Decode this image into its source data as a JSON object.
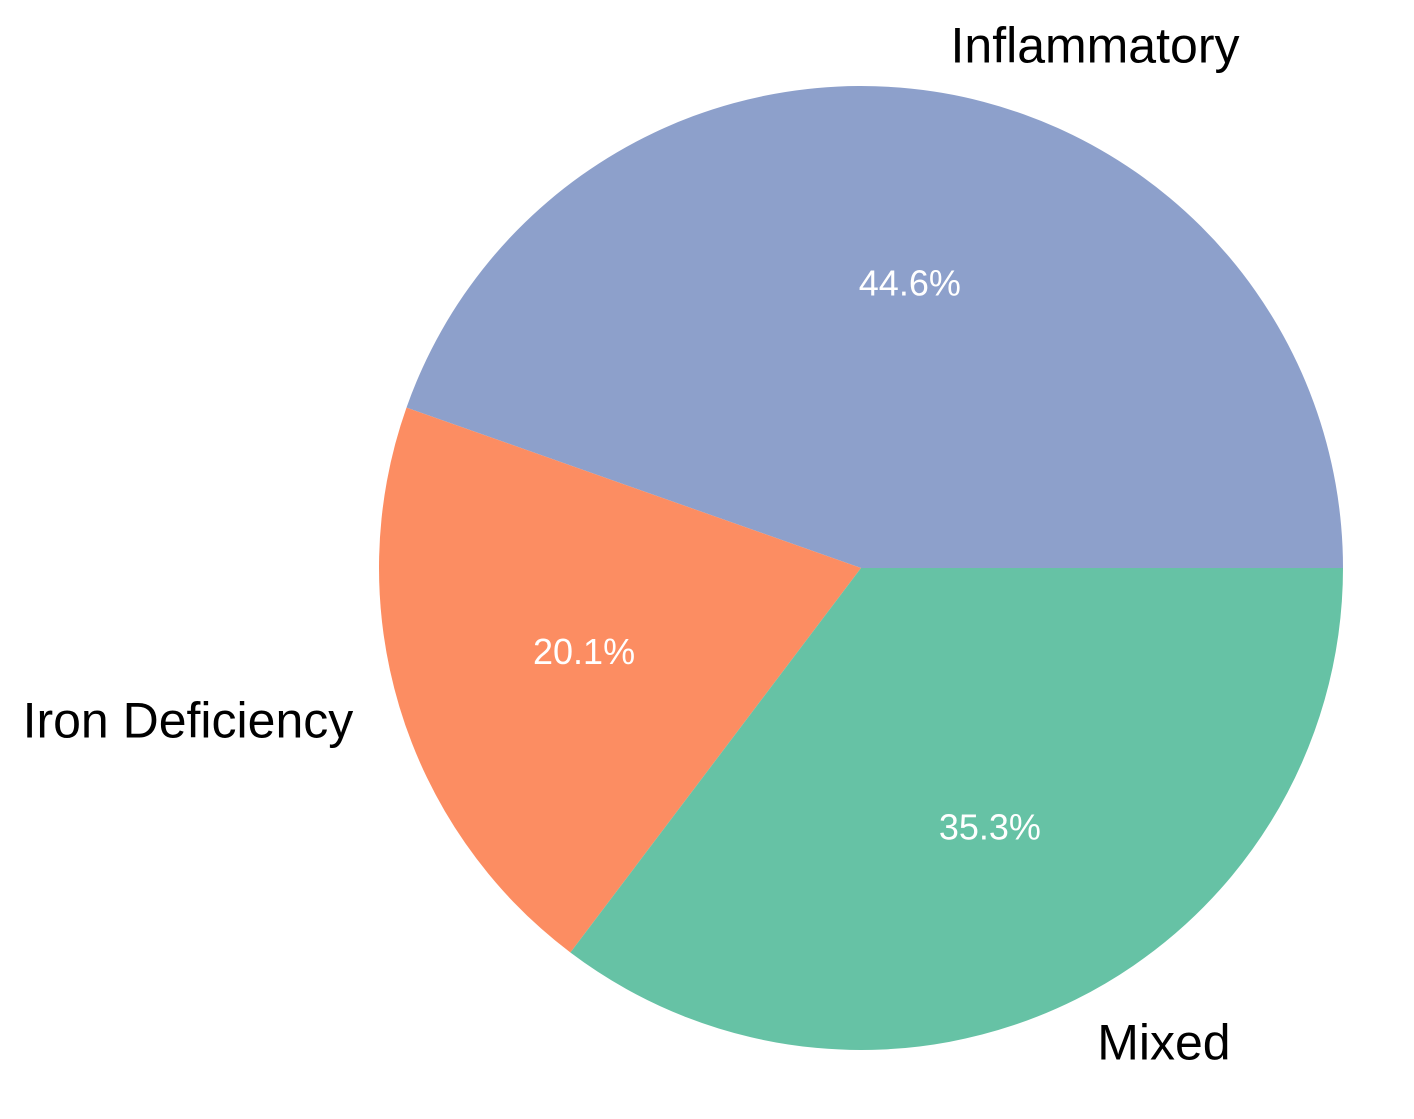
{
  "chart_data": {
    "type": "pie",
    "slices": [
      {
        "label": "Inflammatory",
        "value": 44.6,
        "pct_label": "44.6%",
        "color": "#8da0cb"
      },
      {
        "label": "Iron Deficiency",
        "value": 20.1,
        "pct_label": "20.1%",
        "color": "#fc8d62"
      },
      {
        "label": "Mixed",
        "value": 35.3,
        "pct_label": "35.3%",
        "color": "#66c2a5"
      }
    ],
    "start_angle_deg": 0,
    "direction": "counterclockwise",
    "title": "",
    "legend": "none"
  }
}
